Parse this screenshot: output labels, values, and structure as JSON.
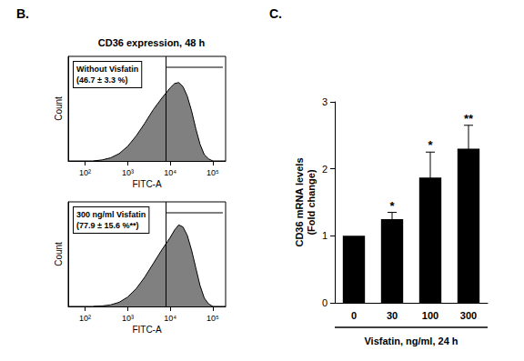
{
  "chart_data": [
    {
      "type": "area",
      "panel": "B.",
      "title": "CD36 expression, 48 h",
      "annotations": [
        "Without Visfatin",
        "(46.7 ± 3.3 %)"
      ],
      "x": [
        158,
        251,
        398,
        631,
        1000,
        1585,
        2512,
        3981,
        6310,
        10000,
        12589,
        15849,
        19953,
        25119,
        31623,
        39811,
        50119,
        63096,
        79433,
        100000
      ],
      "values": [
        0,
        2,
        6,
        14,
        28,
        48,
        72,
        98,
        120,
        140,
        148,
        150,
        142,
        124,
        96,
        62,
        32,
        12,
        4,
        0
      ],
      "gate": 7943,
      "log": "x",
      "xlim": [
        40,
        200000
      ],
      "xticks": [
        {
          "value": 100,
          "label": "10²"
        },
        {
          "value": 1000,
          "label": "10³"
        },
        {
          "value": 10000,
          "label": "10⁴"
        },
        {
          "value": 100000,
          "label": "10⁵"
        }
      ],
      "ylim": [
        0,
        200
      ],
      "tick_labels": "x",
      "x_label": "FITC-A",
      "y_label": "Count",
      "color": "#808080"
    },
    {
      "type": "area",
      "annotations": [
        "300 ng/ml Visfatin",
        "(77.9 ± 15.6 %**)"
      ],
      "x": [
        158,
        251,
        398,
        631,
        1000,
        1585,
        2512,
        3981,
        6310,
        10000,
        12589,
        15849,
        19953,
        25119,
        31623,
        39811,
        50119,
        63096,
        79433,
        100000
      ],
      "values": [
        0,
        1,
        3,
        8,
        18,
        34,
        56,
        82,
        108,
        132,
        146,
        156,
        152,
        136,
        108,
        74,
        40,
        16,
        5,
        0
      ],
      "gate": 7943,
      "log": "x",
      "xlim": [
        40,
        200000
      ],
      "xticks": [
        {
          "value": 100,
          "label": "10²"
        },
        {
          "value": 1000,
          "label": "10³"
        },
        {
          "value": 10000,
          "label": "10⁴"
        },
        {
          "value": 100000,
          "label": "10⁵"
        }
      ],
      "ylim": [
        0,
        200
      ],
      "tick_labels": "x",
      "x_label": "FITC-A",
      "y_label": "Count",
      "color": "#808080"
    },
    {
      "type": "bar",
      "panel": "C.",
      "categories": [
        "0",
        "30",
        "100",
        "300"
      ],
      "values": [
        1,
        1.25,
        1.87,
        2.3
      ],
      "errors": [
        0,
        0.1,
        0.38,
        0.35
      ],
      "significance": [
        null,
        "*",
        "*",
        "**"
      ],
      "ylim": [
        0,
        3
      ],
      "yticks": [
        0,
        1,
        2,
        3
      ],
      "x_label": "Visfatin, ng/ml, 24 h",
      "y_label": "CD36 mRNA levels\n(Fold change)",
      "color": "#000000"
    }
  ]
}
